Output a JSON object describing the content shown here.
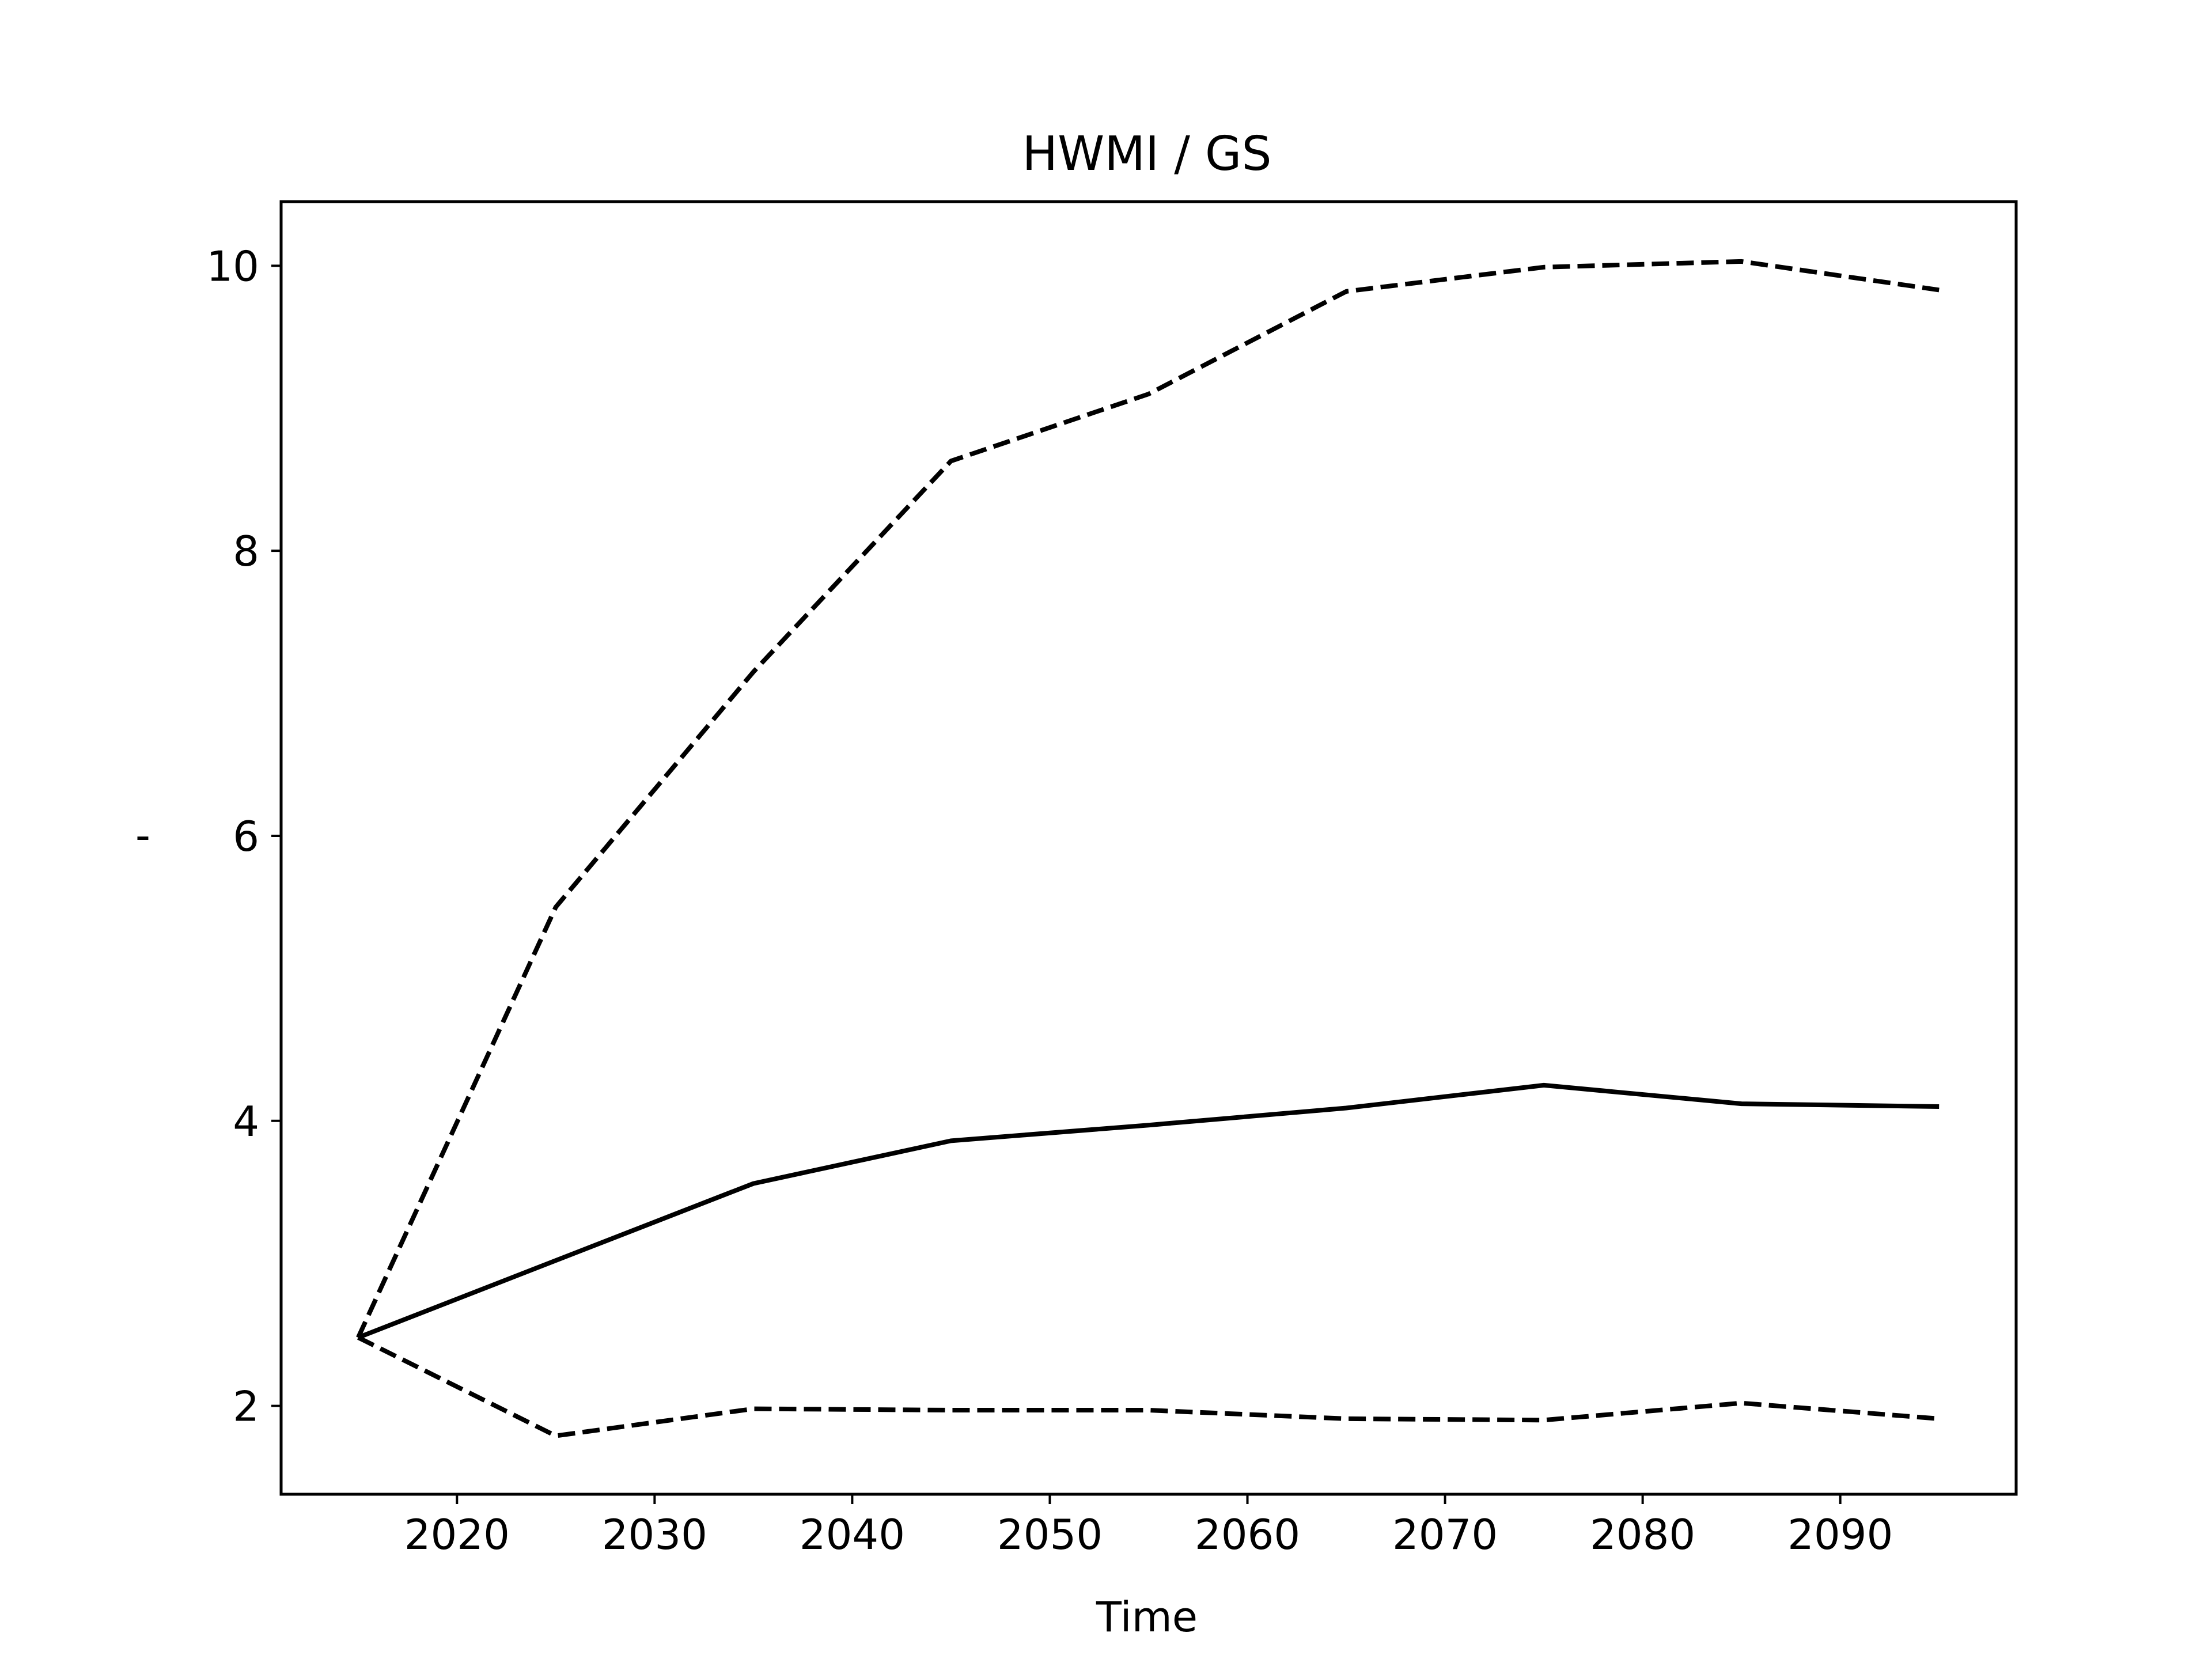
{
  "chart_data": {
    "type": "line",
    "title": "HWMI / GS",
    "xlabel": "Time",
    "ylabel": "-",
    "xlim": [
      2011.1,
      2098.9
    ],
    "ylim": [
      1.38,
      10.45
    ],
    "x_ticks": [
      2020,
      2030,
      2040,
      2050,
      2060,
      2070,
      2080,
      2090
    ],
    "y_ticks": [
      2,
      4,
      6,
      8,
      10
    ],
    "grid": false,
    "legend": "none",
    "x": [
      2015,
      2025,
      2035,
      2045,
      2055,
      2065,
      2075,
      2085,
      2095
    ],
    "series": [
      {
        "style": "dashed",
        "color": "#000000",
        "values": [
          2.48,
          5.5,
          7.15,
          8.63,
          9.1,
          9.82,
          9.99,
          10.03,
          9.83
        ]
      },
      {
        "style": "solid",
        "color": "#000000",
        "values": [
          2.48,
          3.02,
          3.56,
          3.86,
          3.97,
          4.09,
          4.25,
          4.12,
          4.1
        ]
      },
      {
        "style": "dashed",
        "color": "#000000",
        "values": [
          2.48,
          1.79,
          1.98,
          1.97,
          1.97,
          1.91,
          1.9,
          2.02,
          1.91
        ]
      }
    ]
  }
}
